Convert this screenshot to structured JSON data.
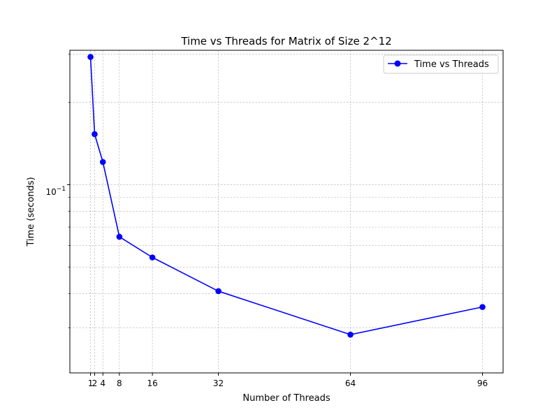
{
  "chart_data": {
    "type": "line",
    "title": "Time vs Threads for Matrix of Size 2^12",
    "xlabel": "Number of Threads",
    "ylabel": "Time (seconds)",
    "x": [
      1,
      2,
      4,
      8,
      16,
      32,
      64,
      96
    ],
    "x_ticks": [
      1,
      2,
      4,
      8,
      16,
      32,
      64,
      96
    ],
    "x_tick_labels": [
      "1",
      "2",
      "4",
      "8",
      "16",
      "32",
      "64",
      "96"
    ],
    "xlim": [
      -4,
      101
    ],
    "yscale": "log",
    "ylim": [
      0.0205,
      0.31
    ],
    "y_major_tick": 0.1,
    "y_major_tick_label": "10",
    "y_major_tick_exponent": "−1",
    "y_minor_ticks": [
      0.03,
      0.04,
      0.05,
      0.06,
      0.07,
      0.08,
      0.09,
      0.2,
      0.3
    ],
    "grid": true,
    "legend_position": "top-right",
    "series": [
      {
        "name": "Time vs Threads",
        "color": "#0000ff",
        "marker": "circle",
        "x": [
          1,
          2,
          4,
          8,
          16,
          32,
          64,
          96
        ],
        "y": [
          0.293,
          0.153,
          0.121,
          0.0645,
          0.0542,
          0.0408,
          0.0283,
          0.0357
        ]
      }
    ]
  }
}
